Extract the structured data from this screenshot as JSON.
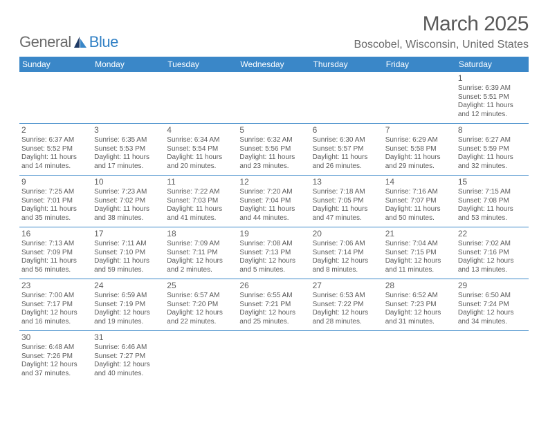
{
  "logo": {
    "word1": "General",
    "word2": "Blue"
  },
  "header": {
    "month_year": "March 2025",
    "location": "Boscobel, Wisconsin, United States"
  },
  "colors": {
    "header_bg": "#3a87c8",
    "header_text": "#ffffff",
    "body_text": "#5a5a5a",
    "logo_gray": "#6a6a6a",
    "logo_blue": "#2f7fc4",
    "row_border": "#3a87c8"
  },
  "day_names": [
    "Sunday",
    "Monday",
    "Tuesday",
    "Wednesday",
    "Thursday",
    "Friday",
    "Saturday"
  ],
  "weeks": [
    [
      {
        "empty": true
      },
      {
        "empty": true
      },
      {
        "empty": true
      },
      {
        "empty": true
      },
      {
        "empty": true
      },
      {
        "empty": true
      },
      {
        "date": "1",
        "sunrise": "Sunrise: 6:39 AM",
        "sunset": "Sunset: 5:51 PM",
        "daylight1": "Daylight: 11 hours",
        "daylight2": "and 12 minutes."
      }
    ],
    [
      {
        "date": "2",
        "sunrise": "Sunrise: 6:37 AM",
        "sunset": "Sunset: 5:52 PM",
        "daylight1": "Daylight: 11 hours",
        "daylight2": "and 14 minutes."
      },
      {
        "date": "3",
        "sunrise": "Sunrise: 6:35 AM",
        "sunset": "Sunset: 5:53 PM",
        "daylight1": "Daylight: 11 hours",
        "daylight2": "and 17 minutes."
      },
      {
        "date": "4",
        "sunrise": "Sunrise: 6:34 AM",
        "sunset": "Sunset: 5:54 PM",
        "daylight1": "Daylight: 11 hours",
        "daylight2": "and 20 minutes."
      },
      {
        "date": "5",
        "sunrise": "Sunrise: 6:32 AM",
        "sunset": "Sunset: 5:56 PM",
        "daylight1": "Daylight: 11 hours",
        "daylight2": "and 23 minutes."
      },
      {
        "date": "6",
        "sunrise": "Sunrise: 6:30 AM",
        "sunset": "Sunset: 5:57 PM",
        "daylight1": "Daylight: 11 hours",
        "daylight2": "and 26 minutes."
      },
      {
        "date": "7",
        "sunrise": "Sunrise: 6:29 AM",
        "sunset": "Sunset: 5:58 PM",
        "daylight1": "Daylight: 11 hours",
        "daylight2": "and 29 minutes."
      },
      {
        "date": "8",
        "sunrise": "Sunrise: 6:27 AM",
        "sunset": "Sunset: 5:59 PM",
        "daylight1": "Daylight: 11 hours",
        "daylight2": "and 32 minutes."
      }
    ],
    [
      {
        "date": "9",
        "sunrise": "Sunrise: 7:25 AM",
        "sunset": "Sunset: 7:01 PM",
        "daylight1": "Daylight: 11 hours",
        "daylight2": "and 35 minutes."
      },
      {
        "date": "10",
        "sunrise": "Sunrise: 7:23 AM",
        "sunset": "Sunset: 7:02 PM",
        "daylight1": "Daylight: 11 hours",
        "daylight2": "and 38 minutes."
      },
      {
        "date": "11",
        "sunrise": "Sunrise: 7:22 AM",
        "sunset": "Sunset: 7:03 PM",
        "daylight1": "Daylight: 11 hours",
        "daylight2": "and 41 minutes."
      },
      {
        "date": "12",
        "sunrise": "Sunrise: 7:20 AM",
        "sunset": "Sunset: 7:04 PM",
        "daylight1": "Daylight: 11 hours",
        "daylight2": "and 44 minutes."
      },
      {
        "date": "13",
        "sunrise": "Sunrise: 7:18 AM",
        "sunset": "Sunset: 7:05 PM",
        "daylight1": "Daylight: 11 hours",
        "daylight2": "and 47 minutes."
      },
      {
        "date": "14",
        "sunrise": "Sunrise: 7:16 AM",
        "sunset": "Sunset: 7:07 PM",
        "daylight1": "Daylight: 11 hours",
        "daylight2": "and 50 minutes."
      },
      {
        "date": "15",
        "sunrise": "Sunrise: 7:15 AM",
        "sunset": "Sunset: 7:08 PM",
        "daylight1": "Daylight: 11 hours",
        "daylight2": "and 53 minutes."
      }
    ],
    [
      {
        "date": "16",
        "sunrise": "Sunrise: 7:13 AM",
        "sunset": "Sunset: 7:09 PM",
        "daylight1": "Daylight: 11 hours",
        "daylight2": "and 56 minutes."
      },
      {
        "date": "17",
        "sunrise": "Sunrise: 7:11 AM",
        "sunset": "Sunset: 7:10 PM",
        "daylight1": "Daylight: 11 hours",
        "daylight2": "and 59 minutes."
      },
      {
        "date": "18",
        "sunrise": "Sunrise: 7:09 AM",
        "sunset": "Sunset: 7:11 PM",
        "daylight1": "Daylight: 12 hours",
        "daylight2": "and 2 minutes."
      },
      {
        "date": "19",
        "sunrise": "Sunrise: 7:08 AM",
        "sunset": "Sunset: 7:13 PM",
        "daylight1": "Daylight: 12 hours",
        "daylight2": "and 5 minutes."
      },
      {
        "date": "20",
        "sunrise": "Sunrise: 7:06 AM",
        "sunset": "Sunset: 7:14 PM",
        "daylight1": "Daylight: 12 hours",
        "daylight2": "and 8 minutes."
      },
      {
        "date": "21",
        "sunrise": "Sunrise: 7:04 AM",
        "sunset": "Sunset: 7:15 PM",
        "daylight1": "Daylight: 12 hours",
        "daylight2": "and 11 minutes."
      },
      {
        "date": "22",
        "sunrise": "Sunrise: 7:02 AM",
        "sunset": "Sunset: 7:16 PM",
        "daylight1": "Daylight: 12 hours",
        "daylight2": "and 13 minutes."
      }
    ],
    [
      {
        "date": "23",
        "sunrise": "Sunrise: 7:00 AM",
        "sunset": "Sunset: 7:17 PM",
        "daylight1": "Daylight: 12 hours",
        "daylight2": "and 16 minutes."
      },
      {
        "date": "24",
        "sunrise": "Sunrise: 6:59 AM",
        "sunset": "Sunset: 7:19 PM",
        "daylight1": "Daylight: 12 hours",
        "daylight2": "and 19 minutes."
      },
      {
        "date": "25",
        "sunrise": "Sunrise: 6:57 AM",
        "sunset": "Sunset: 7:20 PM",
        "daylight1": "Daylight: 12 hours",
        "daylight2": "and 22 minutes."
      },
      {
        "date": "26",
        "sunrise": "Sunrise: 6:55 AM",
        "sunset": "Sunset: 7:21 PM",
        "daylight1": "Daylight: 12 hours",
        "daylight2": "and 25 minutes."
      },
      {
        "date": "27",
        "sunrise": "Sunrise: 6:53 AM",
        "sunset": "Sunset: 7:22 PM",
        "daylight1": "Daylight: 12 hours",
        "daylight2": "and 28 minutes."
      },
      {
        "date": "28",
        "sunrise": "Sunrise: 6:52 AM",
        "sunset": "Sunset: 7:23 PM",
        "daylight1": "Daylight: 12 hours",
        "daylight2": "and 31 minutes."
      },
      {
        "date": "29",
        "sunrise": "Sunrise: 6:50 AM",
        "sunset": "Sunset: 7:24 PM",
        "daylight1": "Daylight: 12 hours",
        "daylight2": "and 34 minutes."
      }
    ],
    [
      {
        "date": "30",
        "sunrise": "Sunrise: 6:48 AM",
        "sunset": "Sunset: 7:26 PM",
        "daylight1": "Daylight: 12 hours",
        "daylight2": "and 37 minutes."
      },
      {
        "date": "31",
        "sunrise": "Sunrise: 6:46 AM",
        "sunset": "Sunset: 7:27 PM",
        "daylight1": "Daylight: 12 hours",
        "daylight2": "and 40 minutes."
      },
      {
        "empty": true
      },
      {
        "empty": true
      },
      {
        "empty": true
      },
      {
        "empty": true
      },
      {
        "empty": true
      }
    ]
  ]
}
